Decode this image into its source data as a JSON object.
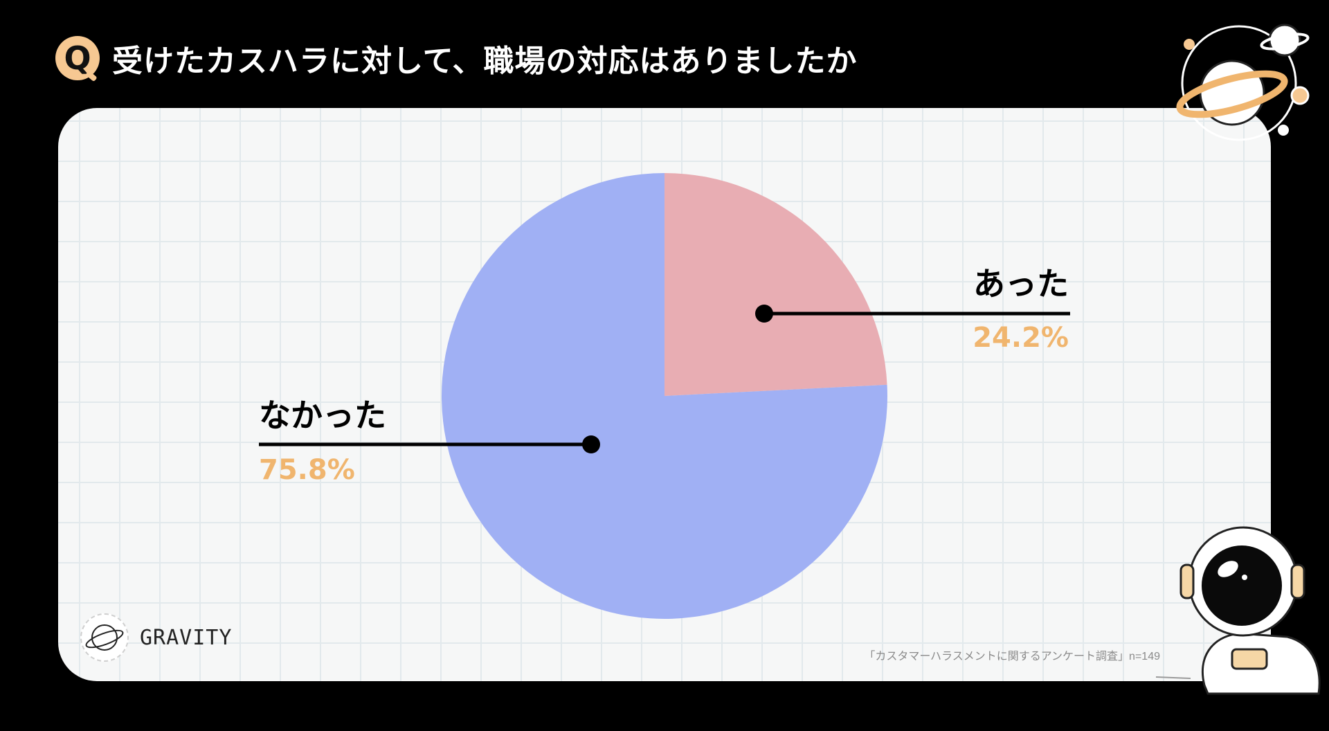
{
  "question_badge": "Q",
  "title": "受けたカスハラに対して、職場の対応はありましたか",
  "chart_data": {
    "type": "pie",
    "slices": [
      {
        "label": "あった",
        "value": 24.2,
        "value_label": "24.2%",
        "color": "#e8adb3"
      },
      {
        "label": "なかった",
        "value": 75.8,
        "value_label": "75.8%",
        "color": "#a0b0f4"
      }
    ],
    "label_color": "#000000",
    "percent_color": "#f0b56e"
  },
  "logo": {
    "text": "GRAVITY"
  },
  "source": "「カスタマーハラスメントに関するアンケート調査」n=149",
  "colors": {
    "background": "#000000",
    "panel": "#f6f7f7",
    "accent": "#f6c892"
  }
}
